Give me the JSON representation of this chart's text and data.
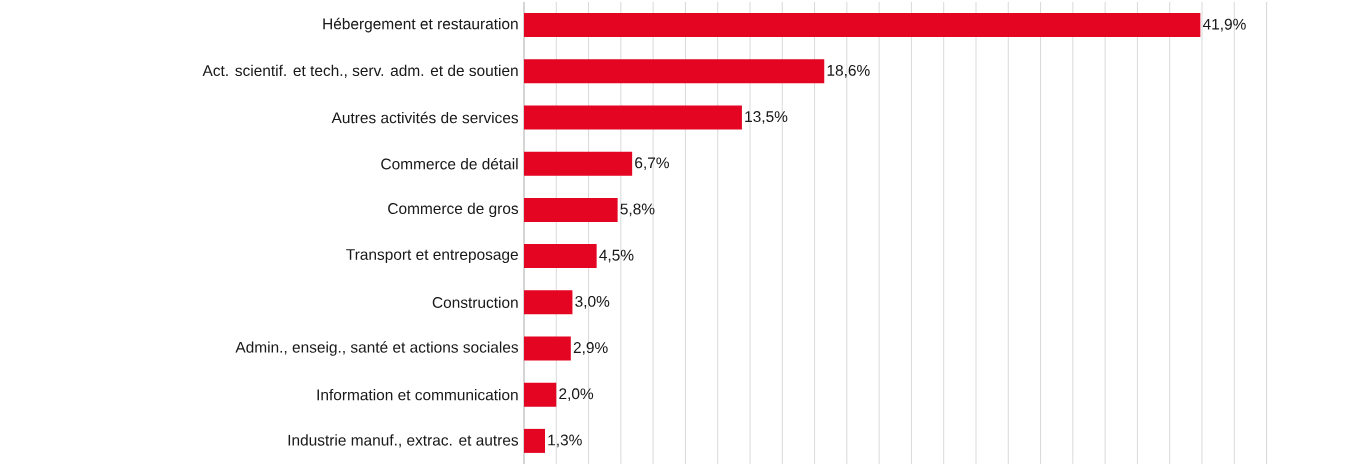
{
  "chart_data": {
    "type": "bar",
    "orientation": "horizontal",
    "categories": [
      "Hébergement et restauration",
      "Act. scientif. et tech., serv. adm. et de soutien",
      "Autres activités de services",
      "Commerce de détail",
      "Commerce de gros",
      "Transport et entreposage",
      "Construction",
      "Admin., enseig., santé et actions sociales",
      "Information et communication",
      "Industrie manuf., extrac. et autres"
    ],
    "values": [
      41.9,
      18.6,
      13.5,
      6.7,
      5.8,
      4.5,
      3.0,
      2.9,
      2.0,
      1.3
    ],
    "value_labels": [
      "41,9%",
      "18,6%",
      "13,5%",
      "6,7%",
      "5,8%",
      "4,5%",
      "3,0%",
      "2,9%",
      "2,0%",
      "1,3%"
    ],
    "color": "#e30522",
    "grid": "x",
    "tick_labels": "y"
  }
}
